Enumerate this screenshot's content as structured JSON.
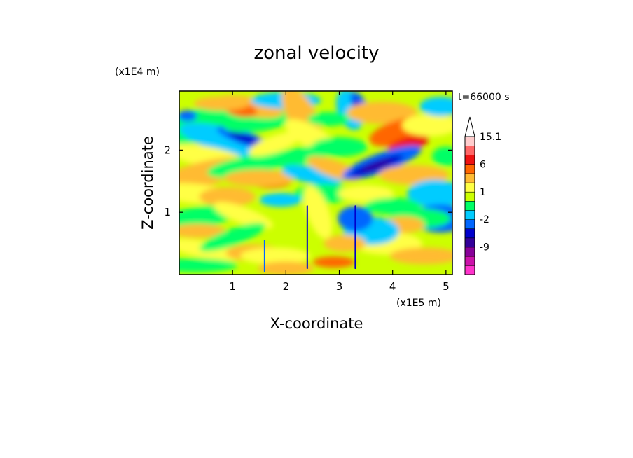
{
  "chart_data": {
    "type": "heatmap",
    "title": "zonal velocity",
    "xlabel": "X-coordinate",
    "ylabel": "Z-coordinate",
    "x_unit": "(x1E5 m)",
    "y_unit": "(x1E4 m)",
    "time_label": "t=66000 s",
    "xlim": [
      0,
      5.12
    ],
    "ylim": [
      0,
      2.95
    ],
    "x_ticks": [
      "1",
      "2",
      "3",
      "4",
      "5"
    ],
    "y_ticks": [
      "1",
      "2"
    ],
    "colorbar": {
      "levels": [
        -15,
        -12,
        -9,
        -6,
        -4,
        -2,
        -1,
        0,
        1,
        2,
        4,
        6,
        9,
        12,
        15.1
      ],
      "labels": [
        "15.1",
        "6",
        "1",
        "-2",
        "-9"
      ],
      "colors": [
        "#ff33cc",
        "#cc11aa",
        "#880099",
        "#330099",
        "#0000cc",
        "#0066ff",
        "#00ccff",
        "#00ff66",
        "#ccff00",
        "#ffff44",
        "#ffbb33",
        "#ff6600",
        "#ee1111",
        "#ff6666",
        "#ffcccc"
      ],
      "extend": "max"
    }
  }
}
